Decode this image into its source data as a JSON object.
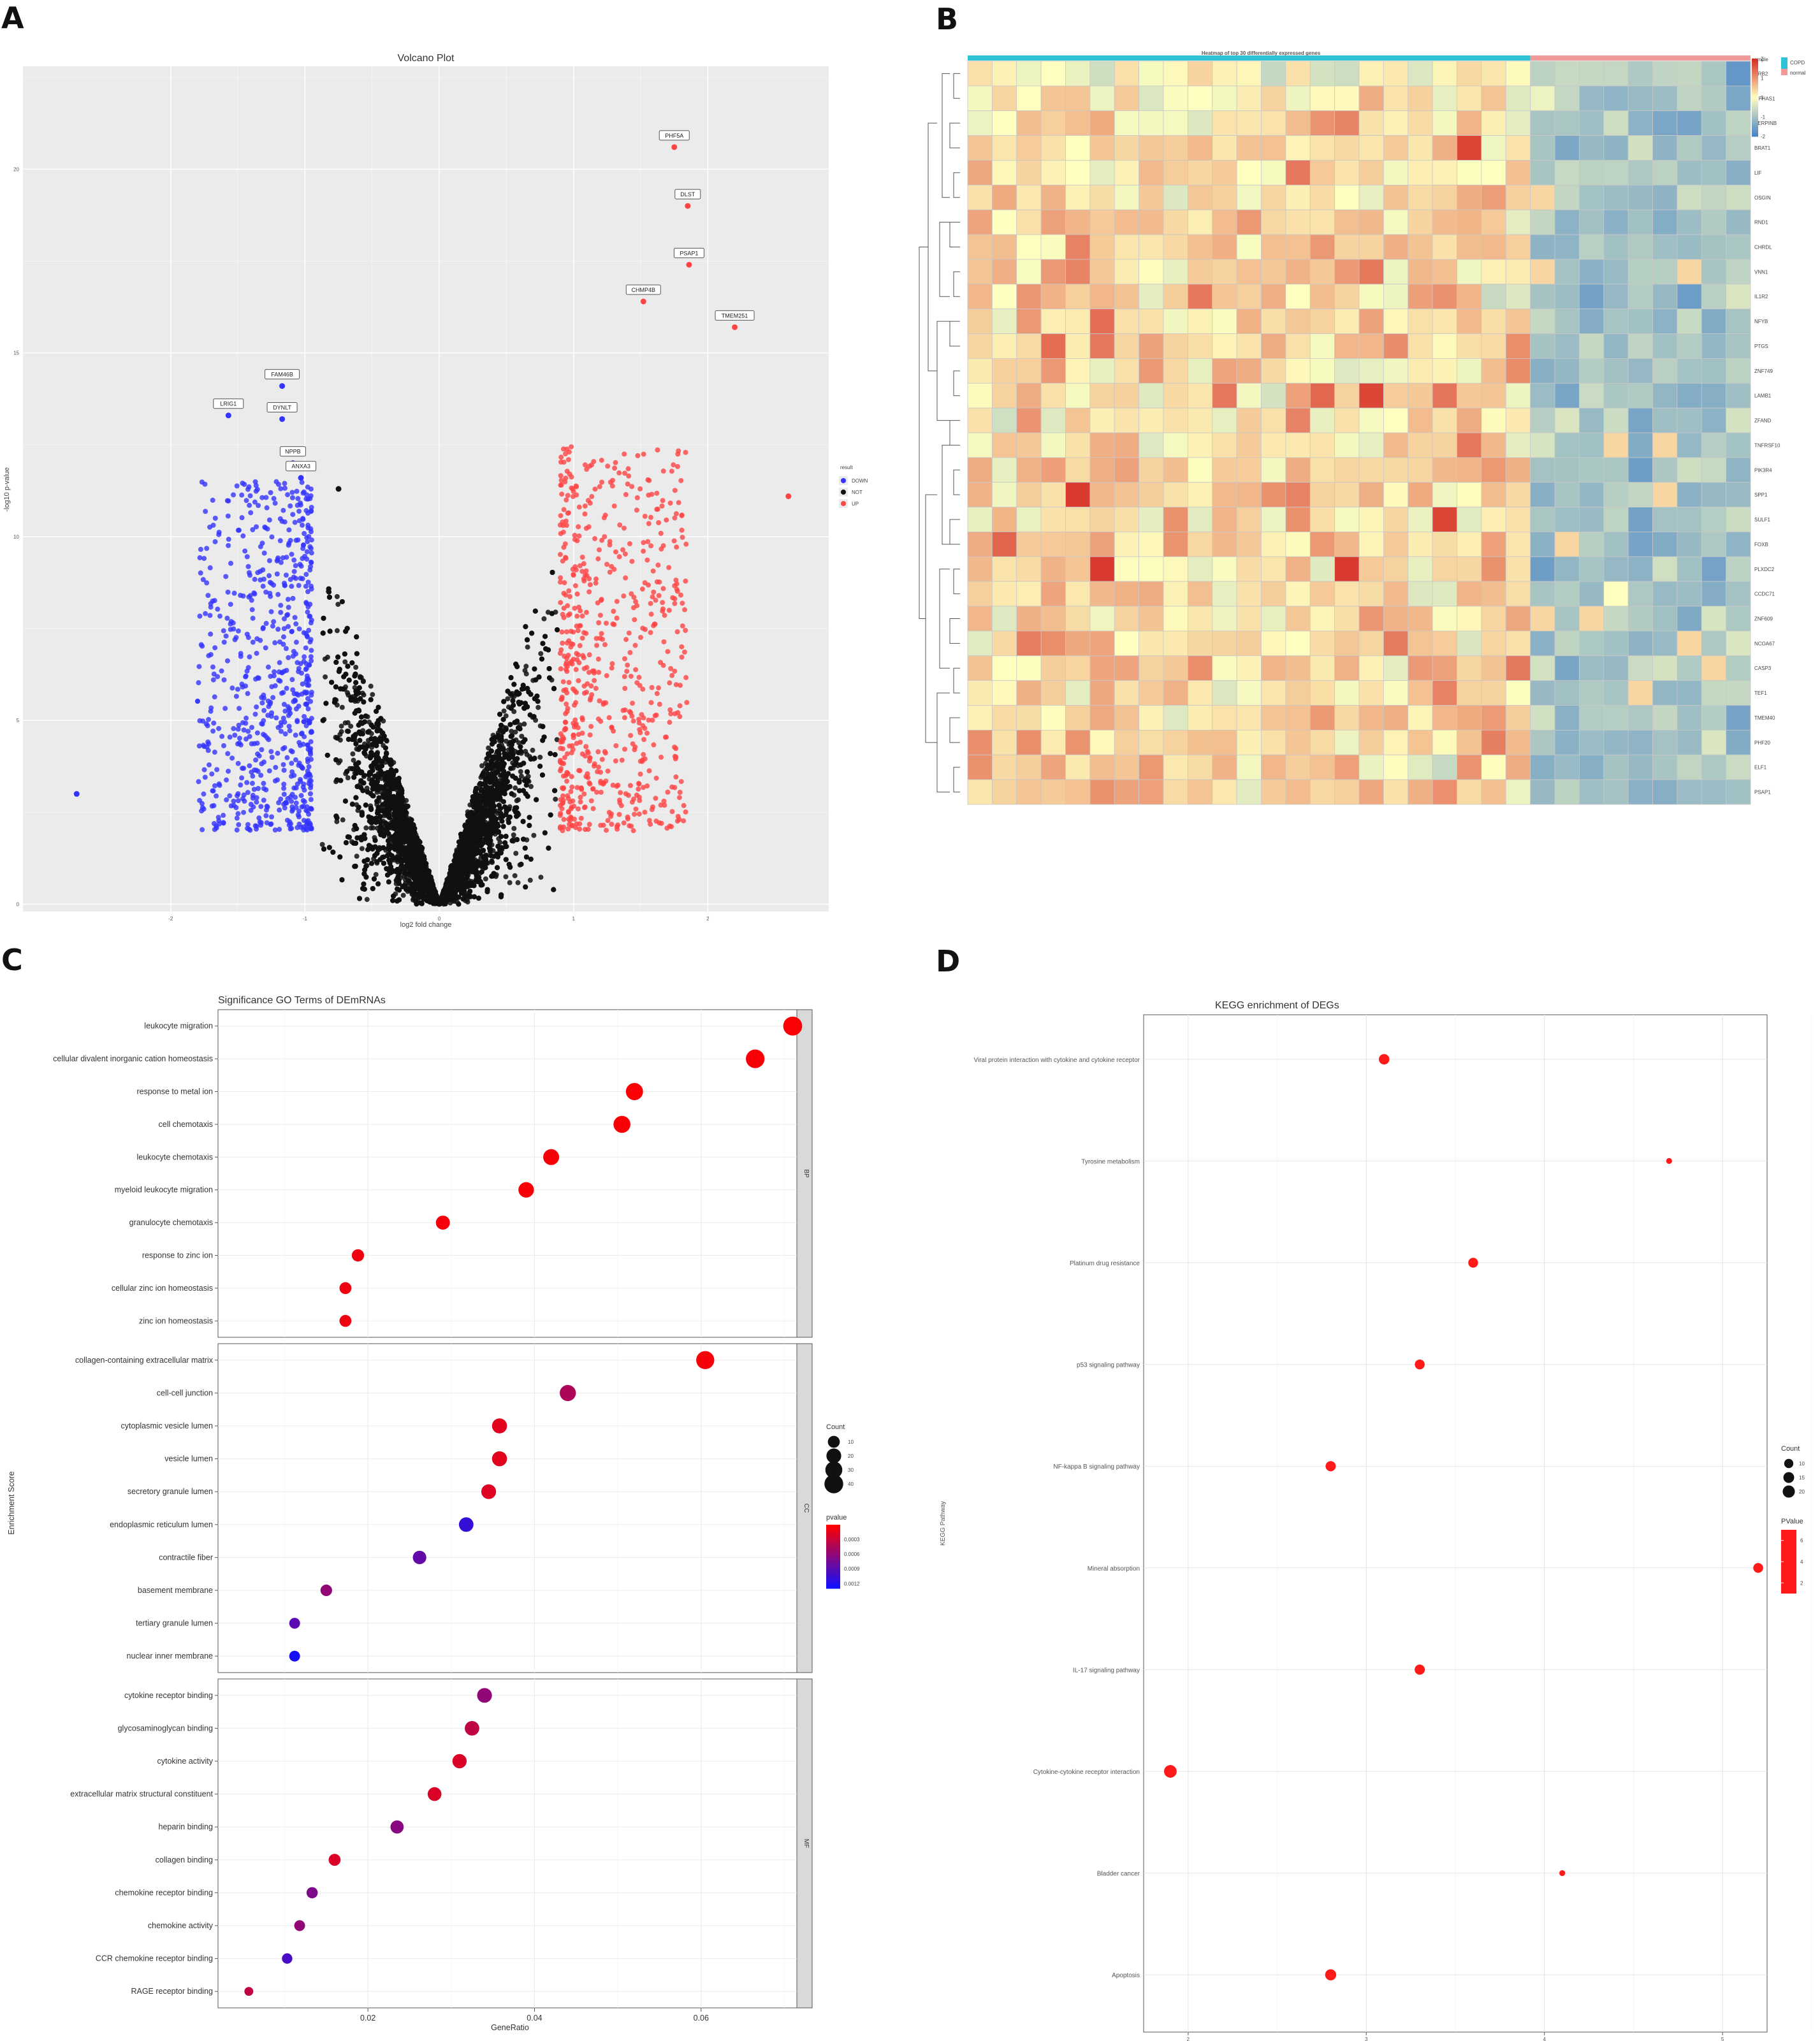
{
  "panel_labels": [
    "A",
    "B",
    "C",
    "D"
  ],
  "chart_data": [
    {
      "panel": "A",
      "type": "scatter",
      "title": "Volcano Plot",
      "xlabel": "log2 fold change",
      "ylabel": "-log10 p-value",
      "xlim": [
        -3.1,
        2.9
      ],
      "ylim": [
        -0.2,
        22.8
      ],
      "x_ticks": [
        -2,
        -1,
        0,
        1,
        2
      ],
      "y_ticks": [
        0,
        5,
        10,
        15,
        20
      ],
      "legend": {
        "title": "result",
        "position": "right",
        "items": [
          "DOWN",
          "NOT",
          "UP"
        ]
      },
      "colors": {
        "DOWN": "#3333ff",
        "NOT": "#111111",
        "UP": "#ff4444"
      },
      "labeled_genes": [
        {
          "name": "PHF5A",
          "x": 1.75,
          "y": 20.6,
          "group": "UP"
        },
        {
          "name": "DLST",
          "x": 1.85,
          "y": 19.0,
          "group": "UP"
        },
        {
          "name": "PSAP1",
          "x": 1.86,
          "y": 17.4,
          "group": "UP"
        },
        {
          "name": "CHMP4B",
          "x": 1.52,
          "y": 16.4,
          "group": "UP"
        },
        {
          "name": "TMEM251",
          "x": 2.2,
          "y": 15.7,
          "group": "UP"
        },
        {
          "name": "FAM46B",
          "x": -1.17,
          "y": 14.1,
          "group": "DOWN"
        },
        {
          "name": "LRIG1",
          "x": -1.57,
          "y": 13.3,
          "group": "DOWN"
        },
        {
          "name": "DYNLT",
          "x": -1.17,
          "y": 13.2,
          "group": "DOWN"
        },
        {
          "name": "NPPB",
          "x": -1.09,
          "y": 12.0,
          "group": "DOWN"
        },
        {
          "name": "ANXA3",
          "x": -1.03,
          "y": 11.6,
          "group": "DOWN"
        }
      ],
      "notable_points": [
        {
          "x": -0.75,
          "y": 11.3,
          "group": "NOT"
        },
        {
          "x": 2.6,
          "y": 11.1,
          "group": "UP"
        },
        {
          "x": -2.7,
          "y": 3.0,
          "group": "DOWN"
        }
      ],
      "points_note": "about 12000 gene points; up or down when |log2 fold change| is above about 0.9"
    },
    {
      "panel": "B",
      "type": "heatmap",
      "title": "Heatmap of top 30 differentially expressed genes",
      "n_genes": 30,
      "n_samples": 32,
      "groups": [
        {
          "name": "COPD",
          "count": 23,
          "color": "#2ec4d6"
        },
        {
          "name": "normal",
          "count": 9,
          "color": "#f09a9a"
        }
      ],
      "legend_title": "sample",
      "color_scale": {
        "low": -2,
        "mid": 0,
        "high": 2,
        "colors": [
          "#4a86c8",
          "#ffffbf",
          "#d73027"
        ]
      },
      "color_ticks": [
        2,
        1,
        0,
        -1,
        -2
      ],
      "gene_labels": [
        "CRB2",
        "MFHAS1",
        "SERPINB",
        "BRAT1",
        "LIF",
        "OSGIN",
        "RND1",
        "CHRDL",
        "VNN1",
        "IL1R2",
        "NFYB",
        "PTGS",
        "ZNF749",
        "LAMB1",
        "ZFAND",
        "TNFRSF10",
        "PIK3R4",
        "SPP1",
        "SULF1",
        "FOXB",
        "PLXDC2",
        "CCDC71",
        "ZNF609",
        "NCOA67",
        "CASP3",
        "TEF1",
        "TMEM40",
        "PHF20",
        "ELF1",
        "PSAP1"
      ]
    },
    {
      "panel": "C",
      "type": "scatter",
      "title": "Significance GO Terms of DEmRNAs",
      "xlabel": "GeneRatio",
      "ylabel": "Enrichment Score",
      "x_ticks": [
        0.02,
        0.04,
        0.06
      ],
      "xlim": [
        0.002,
        0.0715
      ],
      "size_legend": {
        "title": "Count",
        "values": [
          10,
          20,
          30,
          40
        ]
      },
      "color_legend": {
        "title": "pvalue",
        "ticks": [
          0.0003,
          0.0006,
          0.0009,
          0.0012
        ],
        "range": [
          0.0,
          0.0013
        ]
      },
      "facets": [
        {
          "name": "BP",
          "terms": [
            {
              "term": "leukocyte migration",
              "gene_ratio": 0.071,
              "count": 41,
              "pvalue": 2e-05
            },
            {
              "term": "cellular divalent inorganic cation homeostasis",
              "gene_ratio": 0.0665,
              "count": 39,
              "pvalue": 3e-05
            },
            {
              "term": "response to metal ion",
              "gene_ratio": 0.052,
              "count": 31,
              "pvalue": 2e-05
            },
            {
              "term": "cell chemotaxis",
              "gene_ratio": 0.0505,
              "count": 30,
              "pvalue": 3e-05
            },
            {
              "term": "leukocyte chemotaxis",
              "gene_ratio": 0.042,
              "count": 25,
              "pvalue": 4e-05
            },
            {
              "term": "myeloid leukocyte migration",
              "gene_ratio": 0.039,
              "count": 23,
              "pvalue": 4e-05
            },
            {
              "term": "granulocyte chemotaxis",
              "gene_ratio": 0.029,
              "count": 17,
              "pvalue": 6e-05
            },
            {
              "term": "response to zinc ion",
              "gene_ratio": 0.0188,
              "count": 11,
              "pvalue": 8e-05
            },
            {
              "term": "cellular zinc ion homeostasis",
              "gene_ratio": 0.0173,
              "count": 10,
              "pvalue": 8e-05
            },
            {
              "term": "zinc ion homeostasis",
              "gene_ratio": 0.0173,
              "count": 10,
              "pvalue": 9e-05
            }
          ]
        },
        {
          "name": "CC",
          "terms": [
            {
              "term": "collagen-containing extracellular matrix",
              "gene_ratio": 0.0605,
              "count": 36,
              "pvalue": 5e-05
            },
            {
              "term": "cell-cell junction",
              "gene_ratio": 0.044,
              "count": 26,
              "pvalue": 0.00045
            },
            {
              "term": "cytoplasmic vesicle lumen",
              "gene_ratio": 0.0358,
              "count": 21,
              "pvalue": 0.00015
            },
            {
              "term": "vesicle lumen",
              "gene_ratio": 0.0358,
              "count": 21,
              "pvalue": 0.00015
            },
            {
              "term": "secretory granule lumen",
              "gene_ratio": 0.0345,
              "count": 20,
              "pvalue": 0.00018
            },
            {
              "term": "endoplasmic reticulum lumen",
              "gene_ratio": 0.0318,
              "count": 19,
              "pvalue": 0.0011
            },
            {
              "term": "contractile fiber",
              "gene_ratio": 0.0262,
              "count": 15,
              "pvalue": 0.00085
            },
            {
              "term": "basement membrane",
              "gene_ratio": 0.015,
              "count": 9,
              "pvalue": 0.0006
            },
            {
              "term": "tertiary granule lumen",
              "gene_ratio": 0.0112,
              "count": 7,
              "pvalue": 0.0009
            },
            {
              "term": "nuclear inner membrane",
              "gene_ratio": 0.0112,
              "count": 7,
              "pvalue": 0.00125
            }
          ]
        },
        {
          "name": "MF",
          "terms": [
            {
              "term": "cytokine receptor binding",
              "gene_ratio": 0.034,
              "count": 20,
              "pvalue": 0.0006
            },
            {
              "term": "glycosaminoglycan binding",
              "gene_ratio": 0.0325,
              "count": 19,
              "pvalue": 0.00035
            },
            {
              "term": "cytokine activity",
              "gene_ratio": 0.031,
              "count": 18,
              "pvalue": 0.0002
            },
            {
              "term": "extracellular matrix structural constituent",
              "gene_ratio": 0.028,
              "count": 16,
              "pvalue": 0.0002
            },
            {
              "term": "heparin binding",
              "gene_ratio": 0.0235,
              "count": 14,
              "pvalue": 0.00065
            },
            {
              "term": "collagen binding",
              "gene_ratio": 0.016,
              "count": 10,
              "pvalue": 0.0002
            },
            {
              "term": "chemokine receptor binding",
              "gene_ratio": 0.0133,
              "count": 8,
              "pvalue": 0.0007
            },
            {
              "term": "chemokine activity",
              "gene_ratio": 0.0118,
              "count": 7,
              "pvalue": 0.0006
            },
            {
              "term": "CCR chemokine receptor binding",
              "gene_ratio": 0.0103,
              "count": 6,
              "pvalue": 0.001
            },
            {
              "term": "RAGE receptor binding",
              "gene_ratio": 0.0057,
              "count": 3,
              "pvalue": 0.00035
            }
          ]
        }
      ]
    },
    {
      "panel": "D",
      "type": "scatter",
      "title": "KEGG enrichment of DEGs",
      "xlabel": "",
      "ylabel": "KEGG Pathway",
      "x_ticks": [
        2,
        3,
        4,
        5
      ],
      "xlim": [
        1.75,
        5.25
      ],
      "size_legend": {
        "title": "Count",
        "values": [
          10,
          15,
          20
        ]
      },
      "color_legend": {
        "title": "PValue",
        "ticks": [
          6,
          4,
          2
        ],
        "range": [
          1,
          7
        ]
      },
      "terms": [
        {
          "term": "Viral protein interaction with cytokine and cytokine receptor",
          "x": 3.1,
          "count": 14
        },
        {
          "term": "Tyrosine metabolism",
          "x": 4.7,
          "count": 3
        },
        {
          "term": "Platinum drug resistance",
          "x": 3.6,
          "count": 12
        },
        {
          "term": "p53 signaling pathway",
          "x": 3.3,
          "count": 12
        },
        {
          "term": "NF-kappa B signaling pathway",
          "x": 2.8,
          "count": 13
        },
        {
          "term": "Mineral absorption",
          "x": 5.2,
          "count": 12
        },
        {
          "term": "IL-17 signaling pathway",
          "x": 3.3,
          "count": 13
        },
        {
          "term": "Cytokine-cytokine receptor interaction",
          "x": 1.9,
          "count": 22
        },
        {
          "term": "Bladder cancer",
          "x": 4.1,
          "count": 3
        },
        {
          "term": "Apoptosis",
          "x": 2.8,
          "count": 16
        }
      ]
    }
  ]
}
